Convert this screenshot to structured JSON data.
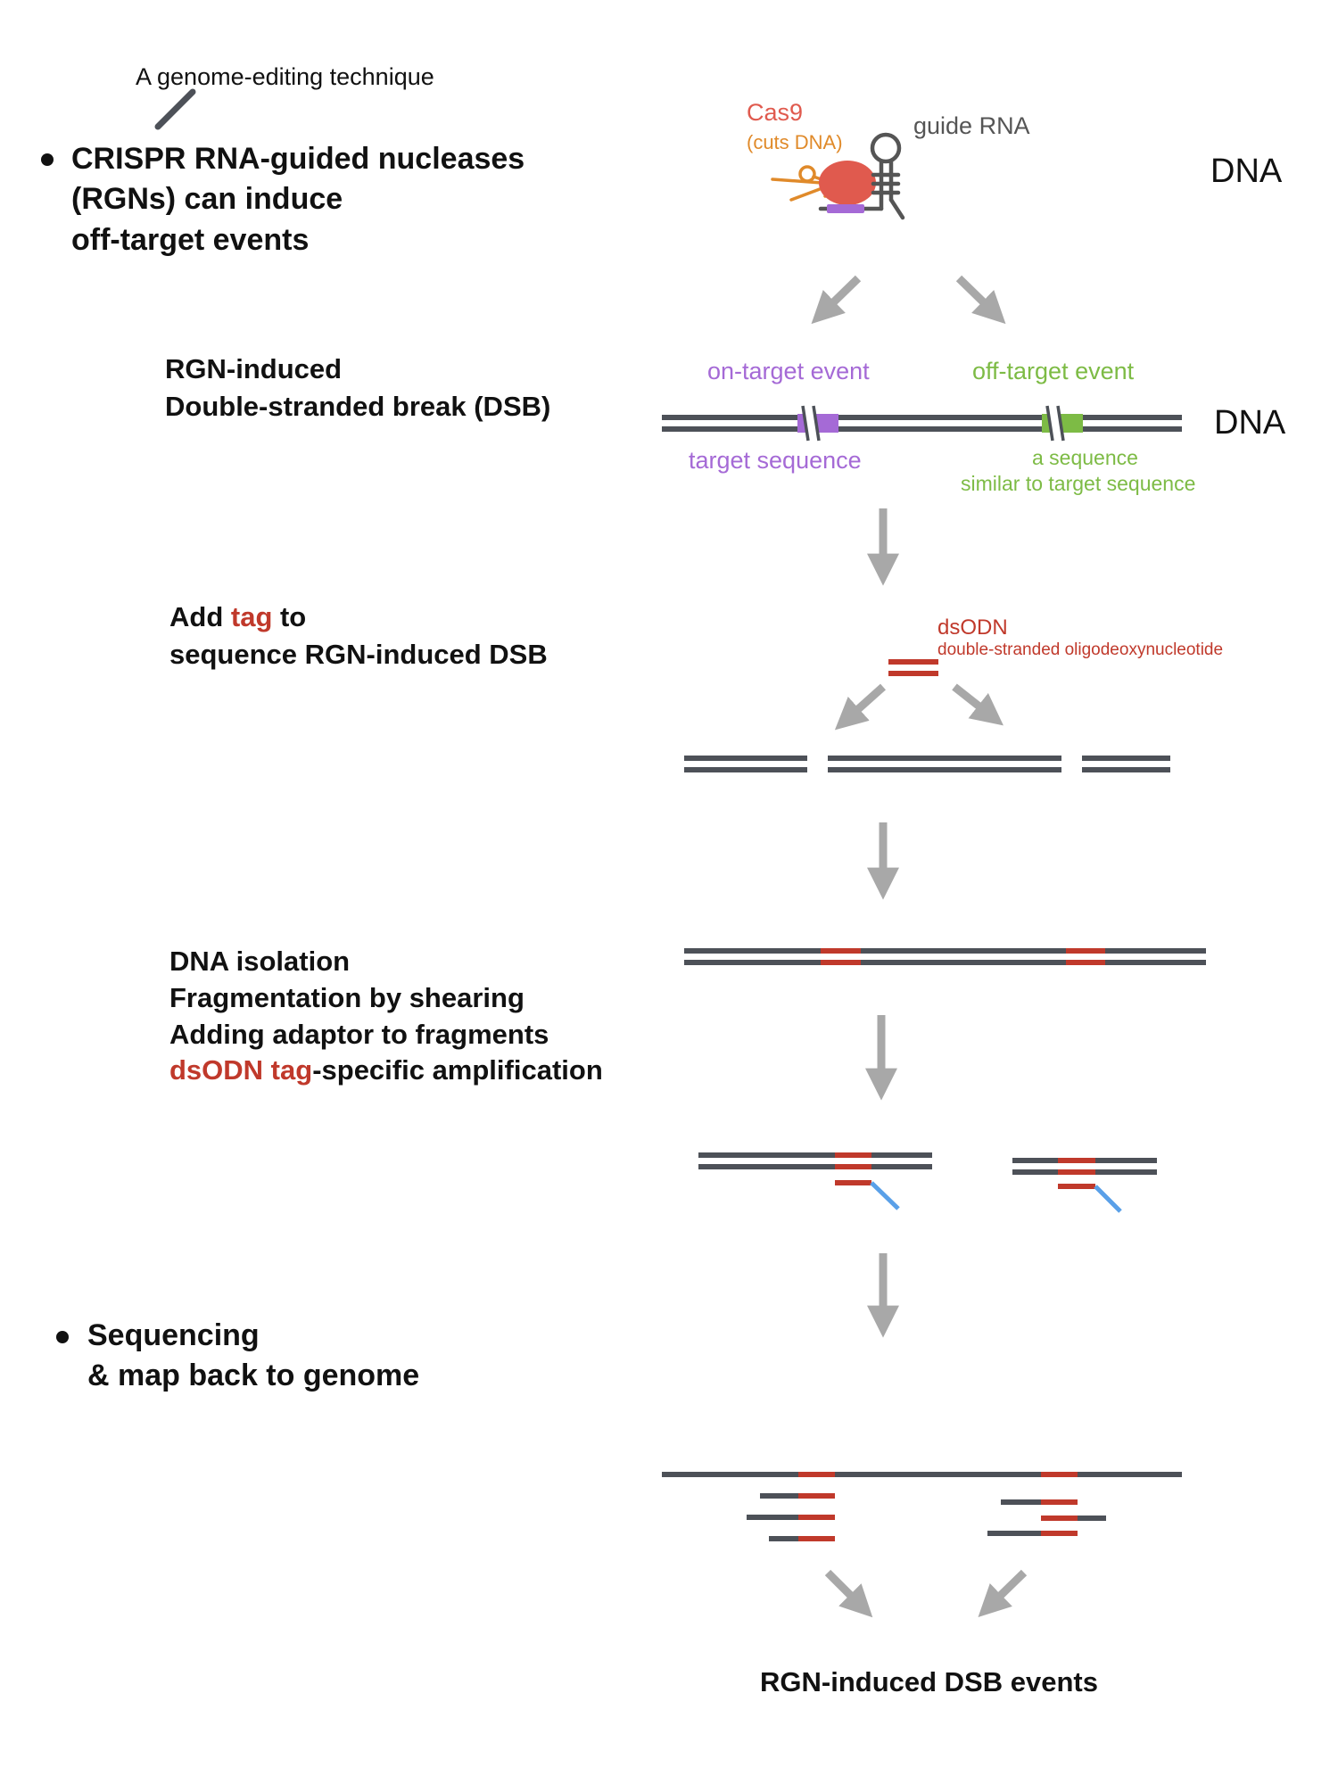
{
  "intro": {
    "annotation": "A genome-editing technique",
    "heading_lines": [
      "CRISPR RNA-guided nucleases",
      "(RGNs) can induce",
      "off-target events"
    ]
  },
  "complex": {
    "cas9_label": "Cas9",
    "cas9_sublabel": "(cuts DNA)",
    "guide_rna_label": "guide RNA",
    "dna_label": "DNA"
  },
  "step1": {
    "lines": [
      "RGN-induced",
      "Double-stranded break (DSB)"
    ],
    "on_target_label": "on-target event",
    "off_target_label": "off-target event",
    "dna_label": "DNA",
    "target_sequence_label": "target sequence",
    "similar_sequence_lines": [
      "a sequence",
      "similar to target sequence"
    ]
  },
  "step2": {
    "line1_prefix": "Add ",
    "line1_tag": "tag",
    "line1_suffix": " to",
    "line2": "sequence RGN-induced DSB",
    "dsodn_label": "dsODN",
    "dsodn_full": "double-stranded oligodeoxynucleotide"
  },
  "step3": {
    "lines": [
      "DNA isolation",
      "Fragmentation by shearing",
      "Adding adaptor to fragments"
    ],
    "last_line_tag": "dsODN tag",
    "last_line_suffix": "-specific amplification"
  },
  "step4": {
    "lines": [
      "Sequencing",
      "& map back to genome"
    ]
  },
  "result": {
    "label": "RGN-induced DSB events"
  },
  "colors": {
    "dna_strand": "#4d5158",
    "arrow": "#a8a8a8",
    "tag_red": "#c0392b",
    "cas9_red": "#e05a4e",
    "scissors_orange": "#e08a2a",
    "on_target_purple": "#a56ad6",
    "off_target_green": "#7dbb45",
    "adaptor_blue": "#5aa0e8",
    "guide_rna_gray": "#555555"
  }
}
